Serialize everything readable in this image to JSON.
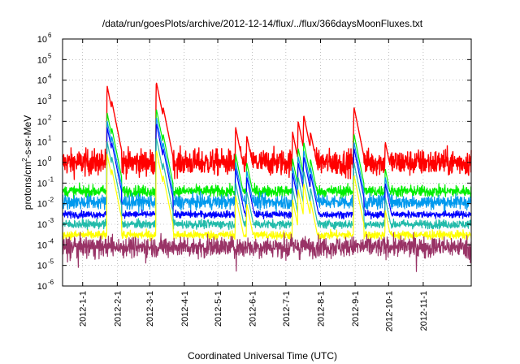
{
  "chart_data": {
    "type": "line",
    "title": "/data/run/goesPlots/archive/2012-12-14/flux/../flux/366daysMoonFluxes.txt",
    "xlabel": "Coordinated Universal Time (UTC)",
    "ylabel": "protons/cm²-s-sr-MeV",
    "ylabel_parts": [
      "protons/cm",
      "2",
      "-s-sr-MeV"
    ],
    "yscale": "log",
    "ylim": [
      1e-06,
      1000000.0
    ],
    "xlim": [
      "2011-12-14",
      "2012-12-14"
    ],
    "grid": true,
    "y_ticks": [
      {
        "base": "10",
        "exp": "-6",
        "value": 1e-06
      },
      {
        "base": "10",
        "exp": "-5",
        "value": 1e-05
      },
      {
        "base": "10",
        "exp": "-4",
        "value": 0.0001
      },
      {
        "base": "10",
        "exp": "-3",
        "value": 0.001
      },
      {
        "base": "10",
        "exp": "-2",
        "value": 0.01
      },
      {
        "base": "10",
        "exp": "-1",
        "value": 0.1
      },
      {
        "base": "10",
        "exp": "0",
        "value": 1
      },
      {
        "base": "10",
        "exp": "1",
        "value": 10
      },
      {
        "base": "10",
        "exp": "2",
        "value": 100
      },
      {
        "base": "10",
        "exp": "3",
        "value": 1000
      },
      {
        "base": "10",
        "exp": "4",
        "value": 10000
      },
      {
        "base": "10",
        "exp": "5",
        "value": 100000
      },
      {
        "base": "10",
        "exp": "6",
        "value": 1000000
      }
    ],
    "x_ticks": [
      "2012-1-1",
      "2012-2-1",
      "2012-3-1",
      "2012-4-1",
      "2012-5-1",
      "2012-6-1",
      "2012-7-1",
      "2012-8-1",
      "2012-9-1",
      "2012-10-1",
      "2012-11-1"
    ],
    "events": [
      {
        "date": "2012-01-23",
        "peak": 5000
      },
      {
        "date": "2012-01-27",
        "peak": 1000
      },
      {
        "date": "2012-03-07",
        "peak": 8000
      },
      {
        "date": "2012-03-13",
        "peak": 500
      },
      {
        "date": "2012-05-17",
        "peak": 50
      },
      {
        "date": "2012-05-27",
        "peak": 20
      },
      {
        "date": "2012-07-07",
        "peak": 30
      },
      {
        "date": "2012-07-12",
        "peak": 100
      },
      {
        "date": "2012-07-17",
        "peak": 200
      },
      {
        "date": "2012-07-23",
        "peak": 30
      },
      {
        "date": "2012-08-31",
        "peak": 500
      },
      {
        "date": "2012-09-28",
        "peak": 10
      }
    ],
    "series": [
      {
        "color": "#ff0000",
        "baseline": 1.0,
        "noise_decades": 0.45,
        "peak_scale": 1.0
      },
      {
        "color": "#00ee00",
        "baseline": 0.04,
        "noise_decades": 0.2,
        "peak_scale": 0.05
      },
      {
        "color": "#0099ee",
        "baseline": 0.012,
        "noise_decades": 0.25,
        "peak_scale": 0.02
      },
      {
        "color": "#0000ff",
        "baseline": 0.003,
        "noise_decades": 0.12,
        "peak_scale": 0.01
      },
      {
        "color": "#22bbaa",
        "baseline": 0.001,
        "noise_decades": 0.15,
        "peak_scale": 0.002
      },
      {
        "color": "#ffff00",
        "baseline": 0.0003,
        "noise_decades": 0.15,
        "peak_scale": 0.0005
      },
      {
        "color": "#993366",
        "baseline": 8e-05,
        "noise_decades": 0.35,
        "peak_scale": 0.0
      }
    ]
  }
}
